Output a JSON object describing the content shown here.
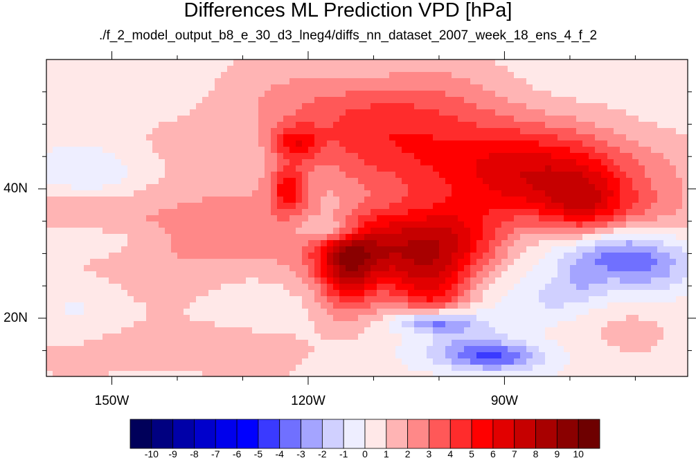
{
  "title": "Differences ML Prediction VPD [hPa]",
  "subtitle": "./f_2_model_output_b8_e_30_d3_lneg4/diffs_nn_dataset_2007_week_18_ens_4_f_2",
  "chart_data": {
    "type": "heatmap",
    "title": "Differences ML Prediction VPD [hPa]",
    "subtitle": "./f_2_model_output_b8_e_30_d3_lneg4/diffs_nn_dataset_2007_week_18_ens_4_f_2",
    "xlim": [
      -160,
      -62
    ],
    "ylim": [
      11,
      60
    ],
    "x_ticks": [
      {
        "value": -150,
        "label": "150W"
      },
      {
        "value": -120,
        "label": "120W"
      },
      {
        "value": -90,
        "label": "90W"
      }
    ],
    "y_ticks": [
      {
        "value": 20,
        "label": "20N"
      },
      {
        "value": 40,
        "label": "40N"
      }
    ],
    "colorbar": {
      "levels": [
        -10,
        -9,
        -8,
        -7,
        -6,
        -5,
        -4,
        -3,
        -2,
        -1,
        0,
        1,
        2,
        3,
        4,
        5,
        6,
        7,
        8,
        9,
        10
      ],
      "labels": [
        "-10",
        "-9",
        "-8",
        "-7",
        "-6",
        "-5",
        "-4",
        "-3",
        "-2",
        "-1",
        "0",
        "1",
        "2",
        "3",
        "4",
        "5",
        "6",
        "7",
        "8",
        "9",
        "10"
      ],
      "colors": [
        "#00005a",
        "#000080",
        "#0000a8",
        "#0000cc",
        "#0000ec",
        "#0000ff",
        "#3a3aff",
        "#7070ff",
        "#a4a4ff",
        "#d0d0ff",
        "#eeeeff",
        "#ffe8e8",
        "#ffb4b4",
        "#ff8888",
        "#ff5858",
        "#ff2c2c",
        "#ff0000",
        "#e20000",
        "#c60000",
        "#a80000",
        "#8a0000",
        "#6e0000"
      ]
    },
    "background_value": 0.5,
    "features": [
      {
        "lon": -108,
        "lat": 31,
        "sx": 8,
        "sy": 4.5,
        "v": 6.5
      },
      {
        "lon": -114,
        "lat": 28,
        "sx": 3,
        "sy": 5,
        "v": 4.5
      },
      {
        "lon": -101,
        "lat": 24,
        "sx": 4,
        "sy": 4,
        "v": 4
      },
      {
        "lon": -97,
        "lat": 32,
        "sx": 5,
        "sy": 4,
        "v": 3
      },
      {
        "lon": -84,
        "lat": 39,
        "sx": 9,
        "sy": 4,
        "v": 3.5
      },
      {
        "lon": -78,
        "lat": 37,
        "sx": 4,
        "sy": 4,
        "v": 2.5
      },
      {
        "lon": -110,
        "lat": 52,
        "sx": 14,
        "sy": 5,
        "v": 3
      },
      {
        "lon": -98,
        "lat": 45,
        "sx": 14,
        "sy": 5,
        "v": 2.5
      },
      {
        "lon": -83,
        "lat": 44,
        "sx": 16,
        "sy": 4,
        "v": 2.5
      },
      {
        "lon": -122,
        "lat": 47,
        "sx": 2.5,
        "sy": 2,
        "v": 3.5
      },
      {
        "lon": -123,
        "lat": 40,
        "sx": 2,
        "sy": 2.5,
        "v": 4
      },
      {
        "lon": -140,
        "lat": 32,
        "sx": 14,
        "sy": 5,
        "v": 1.5
      },
      {
        "lon": -145,
        "lat": 38,
        "sx": 20,
        "sy": 6,
        "v": 1
      },
      {
        "lon": -72,
        "lat": 37,
        "sx": 8,
        "sy": 3,
        "v": 1.5
      },
      {
        "lon": -97,
        "lat": 16,
        "sx": 6,
        "sy": 3,
        "v": -2.5
      },
      {
        "lon": -101,
        "lat": 19.5,
        "sx": 4,
        "sy": 1.2,
        "v": -4.5
      },
      {
        "lon": -91,
        "lat": 14,
        "sx": 5,
        "sy": 1.5,
        "v": -3.5
      },
      {
        "lon": -116,
        "lat": 33.5,
        "sx": 3.5,
        "sy": 1.5,
        "v": -4
      },
      {
        "lon": -115,
        "lat": 37,
        "sx": 3,
        "sy": 2,
        "v": -1.5
      },
      {
        "lon": -74,
        "lat": 30,
        "sx": 6,
        "sy": 3,
        "v": -3.5
      },
      {
        "lon": -67,
        "lat": 28,
        "sx": 5,
        "sy": 3,
        "v": -2
      },
      {
        "lon": -153,
        "lat": 42,
        "sx": 7,
        "sy": 3,
        "v": -2
      },
      {
        "lon": -153,
        "lat": 32,
        "sx": 7,
        "sy": 2,
        "v": -1.8
      },
      {
        "lon": -82,
        "lat": 23,
        "sx": 6,
        "sy": 3,
        "v": -2
      },
      {
        "lon": -72,
        "lat": 19,
        "sx": 6,
        "sy": 3,
        "v": 1
      },
      {
        "lon": -78,
        "lat": 26,
        "sx": 2,
        "sy": 2,
        "v": -1
      },
      {
        "lon": -140,
        "lat": 15,
        "sx": 15,
        "sy": 3,
        "v": 1.2
      },
      {
        "lon": -155,
        "lat": 20,
        "sx": 4,
        "sy": 4,
        "v": -0.5
      }
    ]
  }
}
